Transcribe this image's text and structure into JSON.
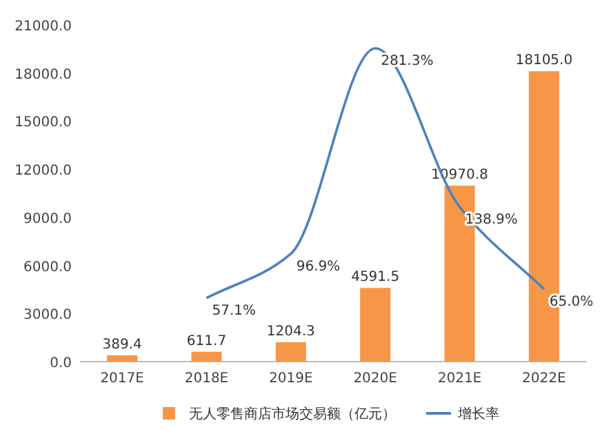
{
  "chart_data": {
    "type": "bar",
    "categories": [
      "2017E",
      "2018E",
      "2019E",
      "2020E",
      "2021E",
      "2022E"
    ],
    "series": [
      {
        "name": "无人零售商店市场交易额（亿元）",
        "color": "#f79646",
        "values": [
          389.4,
          611.7,
          1204.3,
          4591.5,
          10970.8,
          18105.0
        ],
        "value_labels": [
          "389.4",
          "611.7",
          "1204.3",
          "4591.5",
          "10970.8",
          "18105.0"
        ]
      },
      {
        "name": "增长率",
        "type": "line",
        "axis": "y2",
        "color": "#4f81bd",
        "values": [
          null,
          57.1,
          96.9,
          281.3,
          138.9,
          65.0
        ],
        "value_labels": [
          null,
          "57.1%",
          "96.9%",
          "281.3%",
          "138.9%",
          "65.0%"
        ]
      }
    ],
    "ylim": [
      0,
      21000
    ],
    "yticks": [
      {
        "value": 0,
        "label": "0.0"
      },
      {
        "value": 3000,
        "label": "3000.0"
      },
      {
        "value": 6000,
        "label": "6000.0"
      },
      {
        "value": 9000,
        "label": "9000.0"
      },
      {
        "value": 12000,
        "label": "12000.0"
      },
      {
        "value": 15000,
        "label": "15000.0"
      },
      {
        "value": 18000,
        "label": "18000.0"
      },
      {
        "value": 21000,
        "label": "21000.0"
      }
    ],
    "legend": "bottom",
    "marker": "none"
  }
}
